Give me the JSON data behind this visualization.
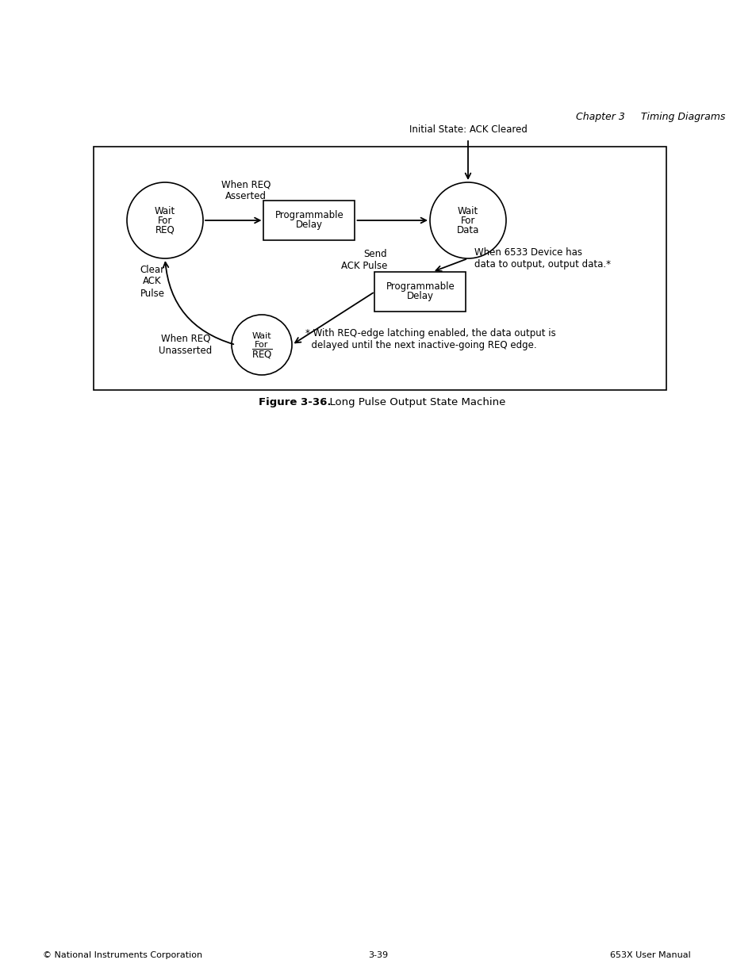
{
  "chapter_header": "Chapter 3     Timing Diagrams",
  "footer_left": "© National Instruments Corporation",
  "footer_center": "3-39",
  "footer_right": "653X User Manual",
  "caption_bold": "Figure 3-36.",
  "caption_rest": "  Long Pulse Output State Machine",
  "bg_color": "#ffffff"
}
